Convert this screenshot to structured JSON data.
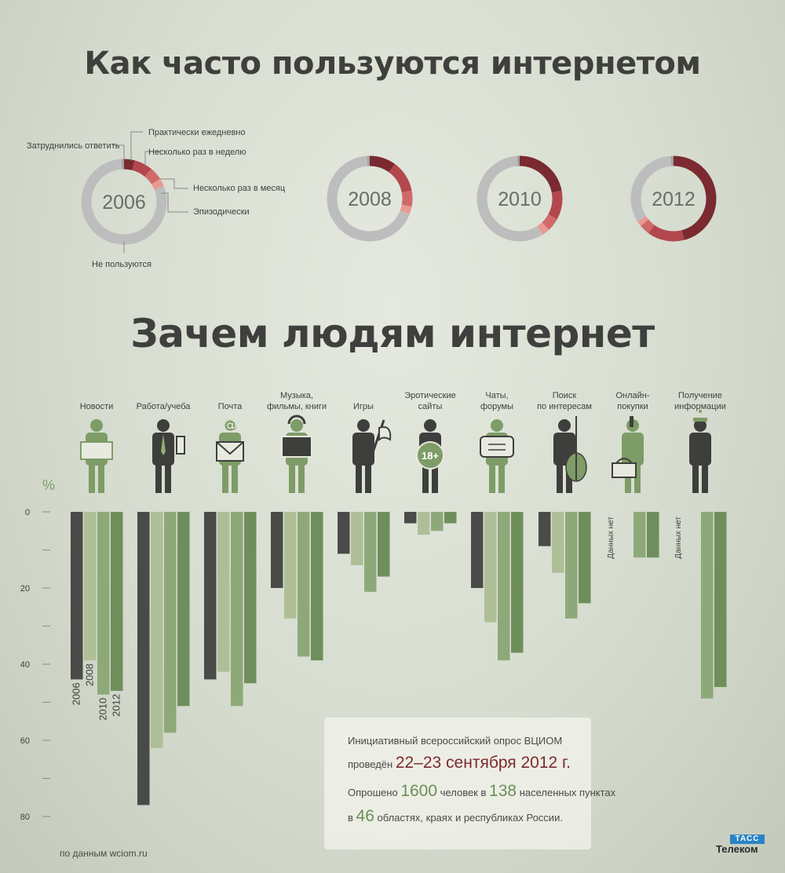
{
  "titles": {
    "frequency": "Как часто пользуются интернетом",
    "purposes": "Зачем людям интернет"
  },
  "donut_labels": {
    "daily": "Практически ежедневно",
    "weekly": "Несколько раз в неделю",
    "monthly": "Несколько раз в месяц",
    "episodic": "Эпизодически",
    "nonusers": "Не пользуются",
    "undecided": "Затруднились ответить"
  },
  "colors": {
    "daily": "#7a2a30",
    "weekly": "#b3474d",
    "monthly": "#d06a6a",
    "episodic": "#e89a90",
    "nonusers": "#bdbdbd",
    "undecided": "#a0a0a0",
    "bar_2006": "#4a4b48",
    "bar_2008": "#aebf98",
    "bar_2010": "#8ea979",
    "bar_2012": "#6e8f5b",
    "icon_dark": "#3e3f3c",
    "icon_green": "#7e9c67"
  },
  "chart_data": [
    {
      "type": "pie",
      "title": "Как часто пользуются интернетом",
      "categories": [
        "Практически ежедневно",
        "Несколько раз в неделю",
        "Несколько раз в месяц",
        "Эпизодически",
        "Не пользуются",
        "Затруднились ответить"
      ],
      "series": [
        {
          "name": "2006",
          "values": [
            4,
            7,
            5,
            3,
            80,
            1
          ]
        },
        {
          "name": "2008",
          "values": [
            10,
            12,
            6,
            3,
            68,
            1
          ]
        },
        {
          "name": "2010",
          "values": [
            22,
            11,
            5,
            3,
            58,
            1
          ]
        },
        {
          "name": "2012",
          "values": [
            46,
            14,
            4,
            2,
            33,
            1
          ]
        }
      ]
    },
    {
      "type": "bar",
      "title": "Зачем людям интернет",
      "ylabel": "%",
      "ylim": [
        0,
        80
      ],
      "yticks": [
        "0",
        "20",
        "40",
        "60",
        "80"
      ],
      "categories": [
        "Новости",
        "Работа/учеба",
        "Почта",
        "Музыка, фильмы, книги",
        "Игры",
        "Эротические сайты",
        "Чаты, форумы",
        "Поиск по интересам",
        "Онлайн-покупки",
        "Получение информации"
      ],
      "series": [
        {
          "name": "2006",
          "values": [
            44,
            77,
            44,
            20,
            11,
            3,
            20,
            9,
            null,
            null
          ]
        },
        {
          "name": "2008",
          "values": [
            39,
            62,
            42,
            28,
            14,
            6,
            29,
            16,
            null,
            null
          ]
        },
        {
          "name": "2010",
          "values": [
            48,
            58,
            51,
            38,
            21,
            5,
            39,
            28,
            12,
            49
          ]
        },
        {
          "name": "2012",
          "values": [
            47,
            51,
            45,
            39,
            17,
            3,
            37,
            24,
            12,
            46
          ]
        }
      ],
      "no_data_label": "Данных нет"
    }
  ],
  "survey": {
    "line1": "Инициативный всероссийский опрос ВЦИОМ",
    "line2_prefix": "проведён",
    "dates": "22–23 сентября 2012 г.",
    "polled_prefix": "Опрошено",
    "respondents": "1600",
    "polled_middle": "человек в",
    "settlements": "138",
    "polled_suffix": "населенных пунктах",
    "line4_prefix": "в",
    "regions": "46",
    "line4_suffix": "областях, краях и республиках России."
  },
  "source": "по данным wciom.ru",
  "logo": {
    "top": "ТАСС",
    "bottom": "Телеком"
  }
}
